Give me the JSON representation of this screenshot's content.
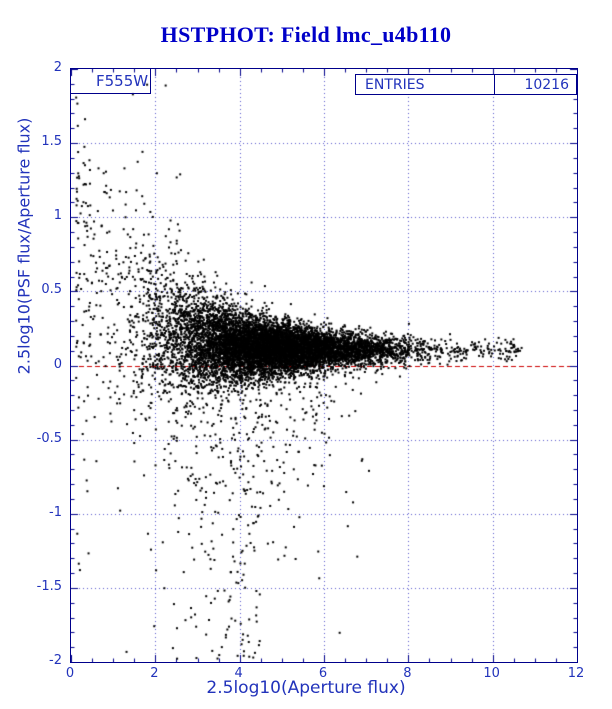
{
  "header": {
    "title": "HSTPHOT: Field lmc_u4b110"
  },
  "chart_data": {
    "type": "scatter",
    "title": "HSTPHOT: Field lmc_u4b110",
    "xlabel": "2.5log10(Aperture flux)",
    "ylabel": "2.5log10(PSF flux/Aperture flux)",
    "xlim": [
      0,
      12
    ],
    "ylim": [
      -2,
      2
    ],
    "x_ticks": [
      0,
      2,
      4,
      6,
      8,
      10,
      12
    ],
    "y_ticks": [
      -2,
      -1.5,
      -1,
      -0.5,
      0,
      0.5,
      1,
      1.5,
      2
    ],
    "grid_x": [
      2,
      4,
      6,
      8,
      10
    ],
    "grid_y": [
      -1.5,
      -1,
      -0.5,
      0,
      0.5,
      1,
      1.5
    ],
    "grid": true,
    "legend": {
      "band_label": "F555W",
      "entries_label": "ENTRIES",
      "entries_value": "10216"
    },
    "reference_line": {
      "y": 0,
      "color": "#cc0000",
      "style": "dashed"
    },
    "n_points": 10216,
    "point_color": "#000000",
    "distribution": {
      "description": "Funnel-shaped photometric residual cloud: dense horizontal band converging to y≈+0.1 for x>4, scatter widening toward the faint end (low x) up to ±1.5, with a plume of negative outliers reaching y=-2 mostly between x≈2 and x≈5, and a sparse bright tail out to x≈10.7 near y≈0.1",
      "seed": 20021116,
      "x_mean": 4.6,
      "x_sigma": 1.4,
      "x_min": 0.12,
      "x_max": 10.7,
      "y_core_base": 0.1,
      "y_base_amp": 0.5,
      "y_base_decay": 1.5,
      "y_sigma_floor": 0.035,
      "y_sigma_amp": 0.65,
      "y_sigma_decay": 2.0,
      "outlier_fraction": 0.12,
      "outlier_scale": 0.55
    }
  },
  "colors": {
    "frame": "#00008b",
    "grid": "#5555cc",
    "axis_text": "#2233bb",
    "title_text": "#0000c8",
    "reference": "#cc0000",
    "points": "#000000"
  }
}
